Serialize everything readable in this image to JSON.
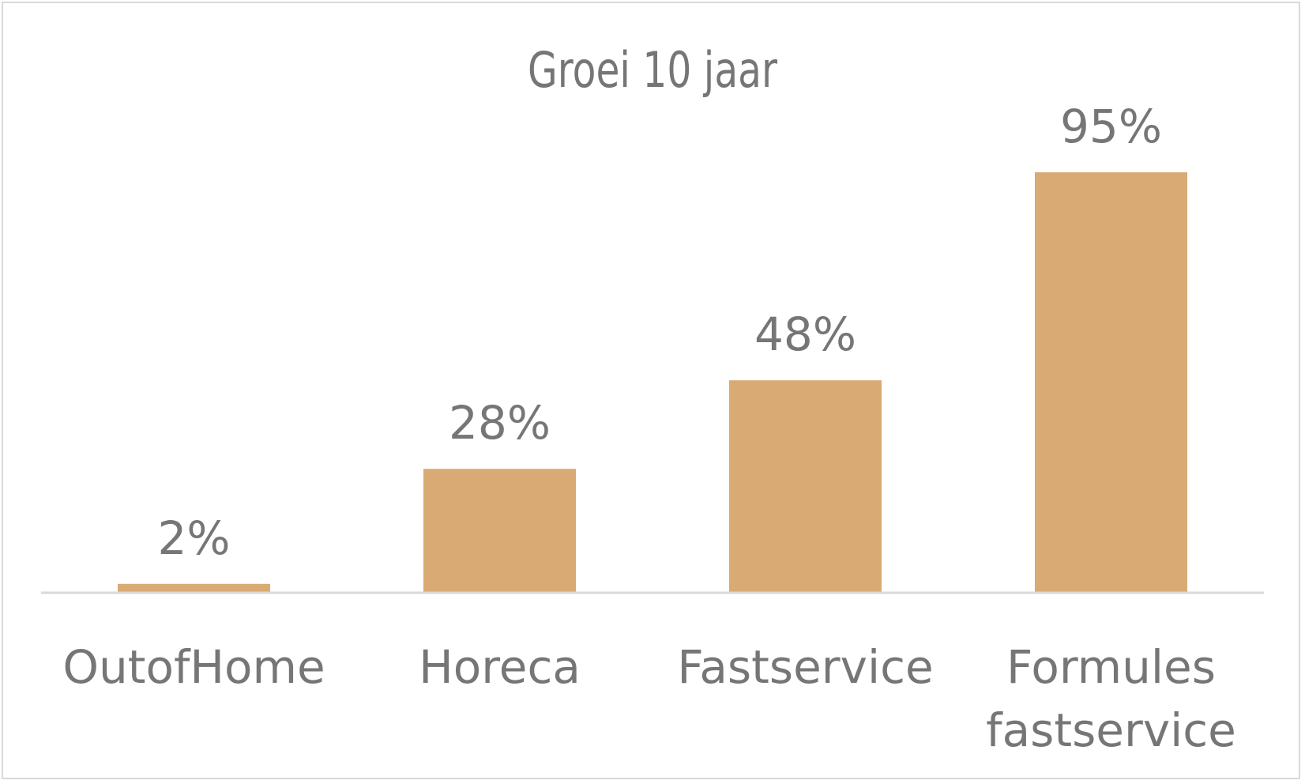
{
  "chart_data": {
    "type": "bar",
    "title": "Groei 10 jaar",
    "xlabel": "",
    "ylabel": "",
    "categories": [
      [
        "OutofHome"
      ],
      [
        "Horeca"
      ],
      [
        "Fastservice"
      ],
      [
        "Formules",
        "fastservice"
      ]
    ],
    "values": [
      2,
      28,
      48,
      95
    ],
    "value_labels": [
      "2%",
      "28%",
      "48%",
      "95%"
    ],
    "ylim": [
      0,
      100
    ],
    "grid": false,
    "legend": "none",
    "bar_color": "#d9aa74",
    "text_color": "#767676",
    "axis_color": "#d9d9d9"
  }
}
